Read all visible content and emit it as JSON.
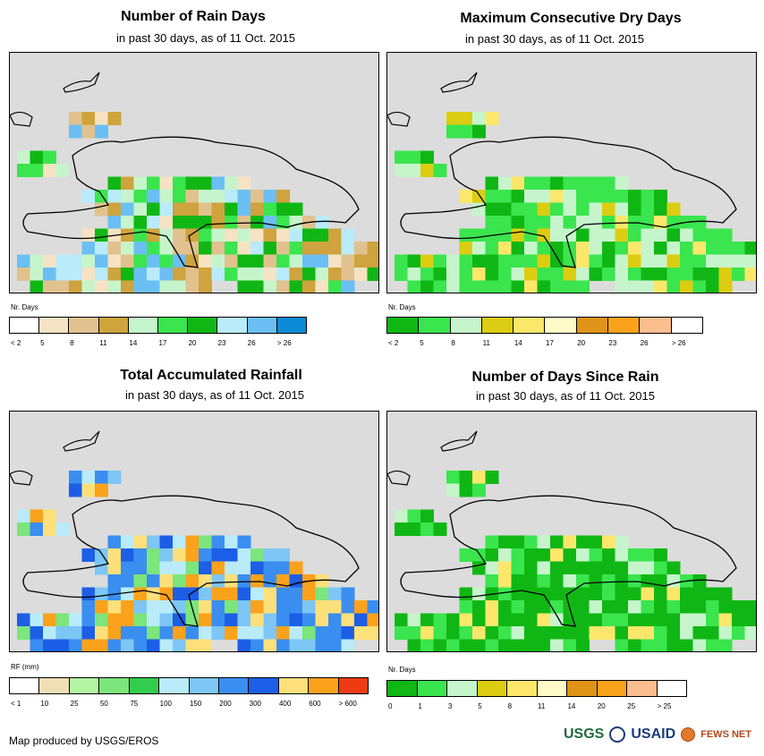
{
  "panels": [
    {
      "title": "Number of Rain Days",
      "subtitle": "in past 30 days, as of 11 Oct. 2015",
      "legend_title": "Nr. Days",
      "legend_labels": [
        "< 2",
        "5",
        "8",
        "11",
        "14",
        "17",
        "20",
        "23",
        "26",
        "> 26"
      ],
      "legend_colors": [
        "#ffffff",
        "#f5e3c4",
        "#e1c28e",
        "#cfa33d",
        "#c6f5cc",
        "#3ae54e",
        "#10b714",
        "#b9ebfa",
        "#6bbff4",
        "#0e8bd6"
      ]
    },
    {
      "title": "Maximum Consecutive Dry Days",
      "subtitle": "in past 30 days, as of 11 Oct. 2015",
      "legend_title": "Nr. Days",
      "legend_labels": [
        "< 2",
        "5",
        "8",
        "11",
        "14",
        "17",
        "20",
        "23",
        "26",
        "> 26"
      ],
      "legend_colors": [
        "#10b714",
        "#3ae54e",
        "#c6f5cc",
        "#dccd12",
        "#fde76b",
        "#fefbc8",
        "#df9418",
        "#fba21c",
        "#fbbe8f",
        "#ffffff"
      ]
    },
    {
      "title": "Total Accumulated Rainfall",
      "subtitle": "in past 30 days, as of 11 Oct. 2015",
      "legend_title": "RF (mm)",
      "legend_labels": [
        "< 1",
        "10",
        "25",
        "50",
        "75",
        "100",
        "150",
        "200",
        "300",
        "400",
        "600",
        "> 600"
      ],
      "legend_colors": [
        "#ffffff",
        "#f0dfb5",
        "#b4f5a4",
        "#7ce57c",
        "#33cc4e",
        "#b9ebfa",
        "#7dc6f5",
        "#3a8ef0",
        "#1c5ee6",
        "#fee07a",
        "#fba21c",
        "#ee3b14"
      ]
    },
    {
      "title": "Number of Days Since Rain",
      "subtitle": "in past 30 days, as of 11 Oct. 2015",
      "legend_title": "Nr. Days",
      "legend_labels": [
        "0",
        "1",
        "3",
        "5",
        "8",
        "11",
        "14",
        "20",
        "25",
        "> 25"
      ],
      "legend_colors": [
        "#10b714",
        "#3ae54e",
        "#c6f5cc",
        "#dccd12",
        "#fde76b",
        "#fefbc8",
        "#df9418",
        "#fba21c",
        "#fbbe8f",
        "#ffffff"
      ]
    }
  ],
  "footer": "Map produced by USGS/EROS",
  "logos": {
    "usgs": "USGS",
    "usaid": "USAID",
    "fews": "FEWS NET"
  },
  "colors": {
    "map_background": "#dcdcdc"
  }
}
